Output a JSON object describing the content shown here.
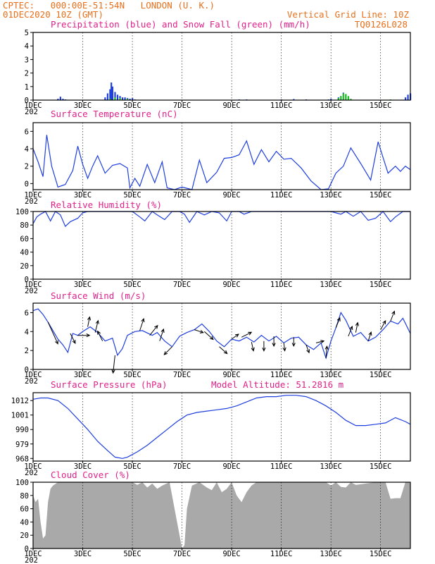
{
  "header": {
    "station_line": "CPTEC:   000:00E-51:54N   LONDON (U. K.)",
    "time_line": "01DEC2020 10Z (GMT)",
    "grid_line": "Vertical Grid Line: 10Z",
    "code": "TQ0126L028"
  },
  "x_axis": {
    "day_range": [
      1,
      16.2
    ],
    "tick_labels": [
      "1DEC",
      "3DEC",
      "5DEC",
      "7DEC",
      "9DEC",
      "11DEC",
      "13DEC",
      "15DEC"
    ],
    "tick_days": [
      1,
      3,
      5,
      7,
      9,
      11,
      13,
      15
    ],
    "year_fragment": "202"
  },
  "colors": {
    "precip": "#1f3fdf",
    "snow": "#22c422",
    "line": "#1f3fdf",
    "title": "#e0218a",
    "header": "#e8701c",
    "cloud": "#a9a9a9"
  },
  "panels": {
    "precip": {
      "title": "Precipitation (blue) and Snow Fall (green) (mm/h)",
      "y_ticks": [
        "0",
        "1",
        "2",
        "3",
        "4",
        "5"
      ]
    },
    "temp": {
      "title": "Surface Temperature (nC)",
      "y_ticks": [
        "0",
        "2",
        "4",
        "6"
      ]
    },
    "rh": {
      "title": "Relative Humidity (%)",
      "y_ticks": [
        "0",
        "20",
        "40",
        "60",
        "80",
        "100"
      ]
    },
    "wind": {
      "title": "Surface Wind (m/s)",
      "y_ticks": [
        "0",
        "2",
        "4",
        "6"
      ]
    },
    "pressure": {
      "title": "Surface Pressure (hPa)",
      "altitude_label": "Model Altitude: 51.2816 m",
      "y_ticks": [
        "968",
        "979",
        "990",
        "1001",
        "1012"
      ]
    },
    "cloud": {
      "title": "Cloud Cover (%)",
      "y_ticks": [
        "0",
        "20",
        "40",
        "60",
        "80",
        "100"
      ]
    }
  },
  "chart_data": [
    {
      "type": "bar",
      "name": "precipitation",
      "ylim": [
        0,
        5
      ],
      "precip_x": [
        2.0,
        2.1,
        2.2,
        2.3,
        3.9,
        4.0,
        4.1,
        4.15,
        4.2,
        4.3,
        4.4,
        4.5,
        4.6,
        4.7,
        4.8,
        4.9,
        5.0,
        5.1,
        9.3,
        9.6,
        11.0,
        11.5,
        12.0,
        12.9,
        13.0,
        13.3,
        13.4,
        13.5,
        13.6,
        13.7,
        16.0,
        16.1,
        16.2
      ],
      "precip_y": [
        0.1,
        0.25,
        0.1,
        0.05,
        0.2,
        0.5,
        0.8,
        1.3,
        1.0,
        0.6,
        0.4,
        0.3,
        0.2,
        0.2,
        0.15,
        0.1,
        0.15,
        0.05,
        0.05,
        0.05,
        0.05,
        0.08,
        0.05,
        0.05,
        0.1,
        0.2,
        0.3,
        0.55,
        0.4,
        0.2,
        0.2,
        0.4,
        0.5
      ],
      "snow_x": [
        4.1,
        4.3,
        4.5,
        4.8,
        13.3,
        13.4,
        13.5,
        13.6,
        13.7,
        13.8,
        15.4
      ],
      "snow_y": [
        0.1,
        0.2,
        0.15,
        0.1,
        0.15,
        0.3,
        0.5,
        0.45,
        0.3,
        0.1,
        0.05
      ]
    },
    {
      "type": "line",
      "name": "surface-temperature",
      "ylim": [
        -0.7,
        7
      ],
      "x": [
        1.0,
        1.2,
        1.4,
        1.55,
        1.75,
        2.0,
        2.3,
        2.6,
        2.8,
        3.0,
        3.2,
        3.4,
        3.6,
        3.9,
        4.2,
        4.5,
        4.8,
        4.9,
        5.1,
        5.3,
        5.6,
        5.9,
        6.2,
        6.4,
        6.7,
        7.0,
        7.4,
        7.7,
        8.0,
        8.4,
        8.7,
        9.0,
        9.3,
        9.6,
        9.9,
        10.2,
        10.5,
        10.8,
        11.1,
        11.4,
        11.8,
        12.2,
        12.6,
        12.9,
        13.2,
        13.5,
        13.8,
        14.2,
        14.6,
        14.9,
        15.1,
        15.3,
        15.6,
        15.8,
        16.0,
        16.2
      ],
      "y": [
        4.0,
        2.5,
        0.8,
        5.6,
        2.0,
        -0.4,
        -0.1,
        1.5,
        4.3,
        2.2,
        0.6,
        2.0,
        3.2,
        1.2,
        2.1,
        2.3,
        1.8,
        -0.5,
        0.6,
        -0.3,
        2.2,
        0.1,
        2.5,
        -0.5,
        -0.9,
        -0.4,
        -0.7,
        2.7,
        0.1,
        1.3,
        2.9,
        3.0,
        3.3,
        4.9,
        2.2,
        3.9,
        2.5,
        3.7,
        2.8,
        2.9,
        1.8,
        0.3,
        -0.8,
        -0.6,
        1.2,
        2.0,
        4.1,
        2.3,
        0.4,
        4.8,
        3.0,
        1.2,
        2.0,
        1.4,
        2.0,
        1.6
      ]
    },
    {
      "type": "line",
      "name": "relative-humidity",
      "ylim": [
        0,
        100
      ],
      "x": [
        1.0,
        1.15,
        1.3,
        1.5,
        1.7,
        1.9,
        2.1,
        2.3,
        2.5,
        2.8,
        3.0,
        3.2,
        3.5,
        3.8,
        4.0,
        4.2,
        4.6,
        5.0,
        5.3,
        5.5,
        5.8,
        6.0,
        6.3,
        6.6,
        6.9,
        7.1,
        7.3,
        7.6,
        7.9,
        8.2,
        8.5,
        8.8,
        9.0,
        9.3,
        9.5,
        9.8,
        10.2,
        10.6,
        11.0,
        11.4,
        11.8,
        12.2,
        12.6,
        13.0,
        13.4,
        13.6,
        13.9,
        14.2,
        14.5,
        14.8,
        15.1,
        15.4,
        15.6,
        15.9,
        16.2
      ],
      "y": [
        82,
        92,
        96,
        100,
        86,
        100,
        95,
        78,
        85,
        90,
        98,
        100,
        100,
        100,
        100,
        100,
        100,
        100,
        92,
        86,
        100,
        95,
        88,
        100,
        100,
        96,
        84,
        100,
        95,
        100,
        98,
        86,
        100,
        100,
        96,
        100,
        100,
        100,
        100,
        100,
        100,
        100,
        100,
        100,
        96,
        100,
        93,
        100,
        87,
        90,
        100,
        85,
        92,
        100,
        100
      ]
    },
    {
      "type": "line",
      "name": "surface-wind",
      "ylim": [
        0,
        7
      ],
      "x": [
        1.0,
        1.2,
        1.4,
        1.6,
        1.8,
        2.0,
        2.2,
        2.4,
        2.6,
        2.8,
        3.0,
        3.3,
        3.6,
        3.9,
        4.2,
        4.4,
        4.6,
        4.8,
        5.1,
        5.4,
        5.8,
        6.0,
        6.3,
        6.6,
        6.9,
        7.2,
        7.5,
        7.8,
        8.1,
        8.4,
        8.7,
        9.0,
        9.3,
        9.6,
        9.9,
        10.2,
        10.5,
        10.8,
        11.1,
        11.4,
        11.7,
        12.0,
        12.3,
        12.6,
        12.8,
        13.0,
        13.2,
        13.4,
        13.6,
        13.9,
        14.2,
        14.5,
        14.8,
        15.1,
        15.4,
        15.7,
        15.9,
        16.2
      ],
      "y": [
        6.2,
        6.4,
        5.8,
        5.0,
        4.1,
        3.2,
        2.6,
        1.8,
        3.8,
        3.6,
        4.0,
        4.5,
        3.9,
        3.0,
        3.3,
        1.5,
        2.2,
        3.6,
        4.0,
        4.1,
        3.6,
        3.9,
        3.0,
        2.4,
        3.5,
        3.9,
        4.2,
        4.8,
        4.0,
        3.0,
        2.4,
        3.2,
        3.0,
        3.4,
        2.9,
        3.6,
        3.0,
        3.5,
        2.8,
        3.3,
        3.4,
        2.6,
        2.1,
        2.8,
        1.2,
        3.0,
        4.4,
        6.0,
        5.2,
        3.5,
        3.9,
        3.0,
        3.4,
        4.2,
        5.1,
        4.8,
        5.4,
        3.8
      ],
      "arrows": [
        {
          "day": 1.6,
          "u": 1.0,
          "v": -2.2
        },
        {
          "day": 2.5,
          "u": 0.5,
          "v": -1.0
        },
        {
          "day": 2.8,
          "u": 1.2,
          "v": 0.0
        },
        {
          "day": 3.2,
          "u": 0.2,
          "v": 1.0
        },
        {
          "day": 3.5,
          "u": 0.3,
          "v": 1.2
        },
        {
          "day": 3.8,
          "u": -0.5,
          "v": 1.0
        },
        {
          "day": 4.3,
          "u": -0.2,
          "v": -1.8
        },
        {
          "day": 5.3,
          "u": 0.4,
          "v": 1.2
        },
        {
          "day": 5.7,
          "u": 0.8,
          "v": 1.0
        },
        {
          "day": 6.1,
          "u": 0.4,
          "v": 1.2
        },
        {
          "day": 6.6,
          "u": -0.8,
          "v": -0.8
        },
        {
          "day": 7.5,
          "u": 0.9,
          "v": -0.3
        },
        {
          "day": 7.9,
          "u": 0.9,
          "v": -0.8
        },
        {
          "day": 8.5,
          "u": 0.8,
          "v": -0.7
        },
        {
          "day": 9.0,
          "u": 0.7,
          "v": 0.5
        },
        {
          "day": 9.4,
          "u": 1.0,
          "v": 0.5
        },
        {
          "day": 9.8,
          "u": 0.2,
          "v": -0.9
        },
        {
          "day": 10.3,
          "u": 0.0,
          "v": -1.0
        },
        {
          "day": 10.7,
          "u": 0.0,
          "v": -1.0
        },
        {
          "day": 11.1,
          "u": 0.1,
          "v": -0.8
        },
        {
          "day": 11.5,
          "u": 0.0,
          "v": -0.9
        },
        {
          "day": 12.0,
          "u": 0.3,
          "v": -0.8
        },
        {
          "day": 12.4,
          "u": 0.8,
          "v": 0.2
        },
        {
          "day": 12.8,
          "u": 0.1,
          "v": 1.2
        },
        {
          "day": 13.2,
          "u": 0.4,
          "v": 1.0
        },
        {
          "day": 13.7,
          "u": 0.4,
          "v": 1.0
        },
        {
          "day": 14.0,
          "u": 0.2,
          "v": 1.0
        },
        {
          "day": 14.5,
          "u": 0.3,
          "v": 0.9
        },
        {
          "day": 15.0,
          "u": 0.5,
          "v": 0.9
        },
        {
          "day": 15.4,
          "u": 0.4,
          "v": 1.0
        }
      ]
    },
    {
      "type": "line",
      "name": "surface-pressure",
      "ylim": [
        966,
        1018
      ],
      "x": [
        1.0,
        1.3,
        1.6,
        2.0,
        2.4,
        2.8,
        3.2,
        3.6,
        4.0,
        4.3,
        4.6,
        4.8,
        5.2,
        5.6,
        6.0,
        6.4,
        6.8,
        7.2,
        7.6,
        8.0,
        8.4,
        8.8,
        9.2,
        9.6,
        10.0,
        10.4,
        10.8,
        11.2,
        11.6,
        12.0,
        12.4,
        12.8,
        13.2,
        13.6,
        14.0,
        14.4,
        14.8,
        15.2,
        15.6,
        16.0,
        16.2
      ],
      "y": [
        1013,
        1014,
        1014,
        1012,
        1006,
        998,
        990,
        981,
        974,
        969,
        968,
        969,
        973,
        978,
        984,
        990,
        996,
        1001,
        1003,
        1004,
        1005,
        1006,
        1008,
        1011,
        1014,
        1015,
        1015,
        1016,
        1016,
        1015,
        1012,
        1008,
        1003,
        997,
        993,
        993,
        994,
        995,
        999,
        996,
        994
      ]
    },
    {
      "type": "area",
      "name": "cloud-cover",
      "ylim": [
        0,
        100
      ],
      "x": [
        1.0,
        1.1,
        1.2,
        1.3,
        1.4,
        1.5,
        1.6,
        1.7,
        1.8,
        2.0,
        2.5,
        3.0,
        3.5,
        4.0,
        4.5,
        5.0,
        5.2,
        5.4,
        5.6,
        5.8,
        6.0,
        6.2,
        6.5,
        6.8,
        6.9,
        7.0,
        7.1,
        7.2,
        7.4,
        7.7,
        8.0,
        8.2,
        8.4,
        8.6,
        8.8,
        9.0,
        9.2,
        9.4,
        9.6,
        9.8,
        10.0,
        10.2,
        10.4,
        10.8,
        11.2,
        11.6,
        12.0,
        12.4,
        12.6,
        12.8,
        13.0,
        13.2,
        13.4,
        13.6,
        13.8,
        14.0,
        14.4,
        14.8,
        15.0,
        15.2,
        15.4,
        15.6,
        15.8,
        16.0,
        16.2
      ],
      "y": [
        80,
        70,
        75,
        40,
        15,
        20,
        70,
        90,
        95,
        100,
        100,
        100,
        100,
        100,
        100,
        100,
        96,
        100,
        92,
        98,
        90,
        95,
        100,
        40,
        20,
        0,
        5,
        60,
        95,
        100,
        92,
        88,
        100,
        85,
        90,
        100,
        80,
        70,
        85,
        95,
        100,
        100,
        100,
        100,
        100,
        100,
        100,
        100,
        100,
        100,
        95,
        100,
        93,
        92,
        100,
        96,
        98,
        100,
        100,
        100,
        75,
        76,
        76,
        100,
        100
      ]
    }
  ]
}
